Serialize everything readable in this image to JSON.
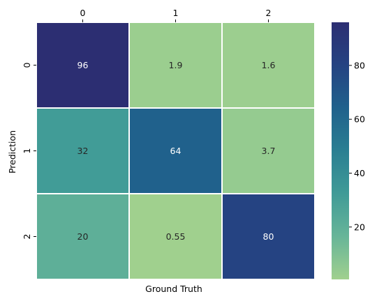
{
  "chart_data": {
    "type": "heatmap",
    "title": "",
    "xlabel": "Ground Truth",
    "ylabel": "Prediction",
    "x_categories": [
      "0",
      "1",
      "2"
    ],
    "y_categories": [
      "0",
      "1",
      "2"
    ],
    "x_tick_position": "top",
    "values": [
      [
        96,
        1.9,
        1.6
      ],
      [
        32,
        64,
        3.7
      ],
      [
        20,
        0.55,
        80
      ]
    ],
    "cell_labels": [
      [
        "96",
        "1.9",
        "1.6"
      ],
      [
        "32",
        "64",
        "3.7"
      ],
      [
        "20",
        "0.55",
        "80"
      ]
    ],
    "colorbar": {
      "range": [
        0.55,
        96
      ],
      "ticks": [
        "20",
        "40",
        "60",
        "80"
      ],
      "colormap": "crest",
      "colors": [
        "#a0d08e",
        "#67b598",
        "#409b97",
        "#2a7f92",
        "#20618c",
        "#254382",
        "#2c2e72"
      ]
    },
    "grid": false,
    "cell_border_color": "#ffffff"
  }
}
